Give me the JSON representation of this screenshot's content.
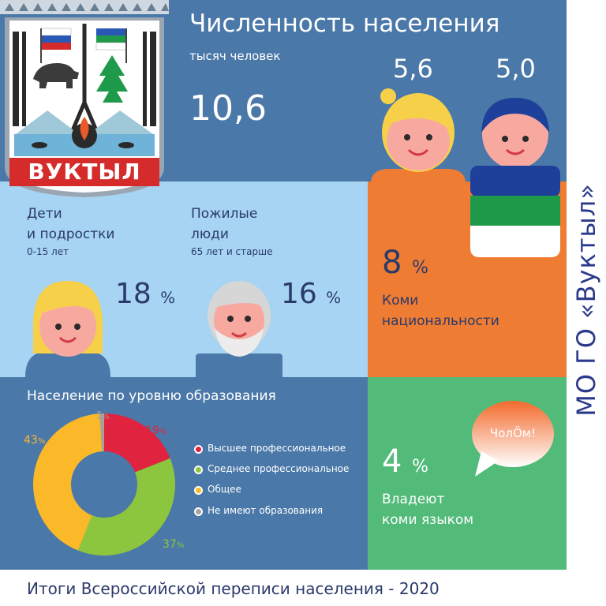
{
  "header": {
    "title": "Численность населения",
    "unit": "тысяч человек",
    "total": "10,6",
    "female_value": "5,6",
    "male_value": "5,0"
  },
  "emblem": {
    "name": "ВУКТЫЛ"
  },
  "age_groups": {
    "children": {
      "label_line1": "Дети",
      "label_line2": "и подростки",
      "range": "0-15 лет",
      "value": "18",
      "unit": "%"
    },
    "elderly": {
      "label_line1": "Пожилые",
      "label_line2": "люди",
      "range": "65 лет и старше",
      "value": "16",
      "unit": "%"
    }
  },
  "komi_nationality": {
    "value": "8",
    "unit": "%",
    "label_line1": "Коми",
    "label_line2": "национальности"
  },
  "komi_language": {
    "value": "4",
    "unit": "%",
    "label_line1": "Владеют",
    "label_line2": "коми языком",
    "bubble": "ЧолÖм!"
  },
  "education": {
    "title": "Население по уровню образования",
    "legend": [
      {
        "label": "Высшее профессиональное",
        "value": 19,
        "color": "#e0233e",
        "display": "19",
        "unit": "%"
      },
      {
        "label": "Среднее профессиональное",
        "value": 37,
        "color": "#8cc63f",
        "display": "37",
        "unit": "%"
      },
      {
        "label": "Общее",
        "value": 43,
        "color": "#fbb929",
        "display": "43",
        "unit": "%"
      },
      {
        "label": "Не имеют образования",
        "value": 1,
        "color": "#a8a19a",
        "display": "1",
        "unit": "%"
      }
    ]
  },
  "side_label": "МО ГО «Вуктыл»",
  "footer": "Итоги Всероссийской переписи населения - 2020",
  "colors": {
    "blue": "#4a78a8",
    "light_blue": "#a6d4f2",
    "orange": "#ef7c33",
    "green": "#52bb79",
    "navy": "#2b3a6b"
  }
}
